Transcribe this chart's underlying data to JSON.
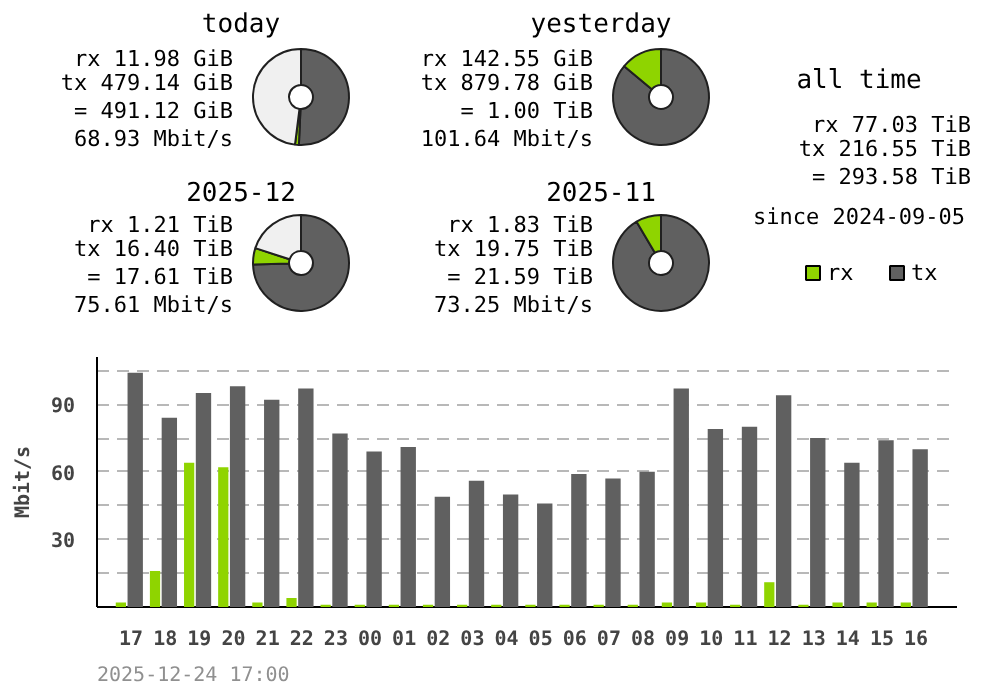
{
  "chart_data": [
    {
      "type": "donut",
      "title": "today",
      "categories": [
        null,
        null,
        null
      ],
      "values": [
        50.7,
        1.3,
        48
      ],
      "colors": [
        "#606060",
        "#8fd400",
        "#f0f0f0"
      ],
      "annotations": [
        "rx 11.98 GiB",
        "tx 479.14 GiB",
        "= 491.12 GiB",
        "68.93 Mbit/s"
      ]
    },
    {
      "type": "donut",
      "title": "yesterday",
      "categories": [
        null,
        null
      ],
      "values": [
        86.1,
        13.9
      ],
      "colors": [
        "#606060",
        "#8fd400"
      ],
      "annotations": [
        "rx 142.55 GiB",
        "tx 879.78 GiB",
        "= 1.00 TiB",
        "101.64 Mbit/s"
      ]
    },
    {
      "type": "other",
      "title": "all time",
      "annotations": [
        "rx 77.03 TiB",
        "tx 216.55 TiB",
        "= 293.58 TiB",
        "since 2024-09-05"
      ]
    },
    {
      "type": "donut",
      "title": "2025-12",
      "categories": [
        null,
        null,
        null
      ],
      "values": [
        74.5,
        5.5,
        20
      ],
      "colors": [
        "#606060",
        "#8fd400",
        "#f0f0f0"
      ],
      "annotations": [
        "rx 1.21 TiB",
        "tx 16.40 TiB",
        "= 17.61 TiB",
        "75.61 Mbit/s"
      ]
    },
    {
      "type": "donut",
      "title": "2025-11",
      "categories": [
        null,
        null
      ],
      "values": [
        91.5,
        8.5
      ],
      "colors": [
        "#606060",
        "#8fd400"
      ],
      "annotations": [
        "rx 1.83 TiB",
        "tx 19.75 TiB",
        "= 21.59 TiB",
        "73.25 Mbit/s"
      ]
    },
    {
      "type": "bar",
      "ylabel": "Mbit/s",
      "categories": [
        "17",
        "18",
        "19",
        "20",
        "21",
        "22",
        "23",
        "00",
        "01",
        "02",
        "03",
        "04",
        "05",
        "06",
        "07",
        "08",
        "09",
        "10",
        "11",
        "12",
        "13",
        "14",
        "15",
        "16"
      ],
      "series": [
        {
          "name": "rx",
          "color": "#8fd400",
          "values": [
            2,
            16,
            64,
            62,
            2,
            4,
            1,
            1,
            1,
            1,
            1,
            1,
            1,
            1,
            1,
            1,
            2,
            2,
            1,
            11,
            1,
            2,
            2,
            2
          ]
        },
        {
          "name": "tx",
          "color": "#606060",
          "values": [
            104,
            84,
            95,
            98,
            92,
            97,
            77,
            69,
            71,
            49,
            56,
            50,
            46,
            59,
            57,
            60,
            97,
            79,
            80,
            94,
            75,
            64,
            74,
            70
          ]
        }
      ],
      "ylim": [
        0,
        111
      ],
      "yticks": [
        {
          "value": 15,
          "label": null
        },
        30,
        {
          "value": 45,
          "label": null
        },
        60,
        {
          "value": 75,
          "label": null
        },
        90,
        {
          "value": 105,
          "label": null
        }
      ],
      "grid": "y",
      "legend": "top right",
      "annotations": [
        "2025-12-24 17:00"
      ]
    }
  ]
}
